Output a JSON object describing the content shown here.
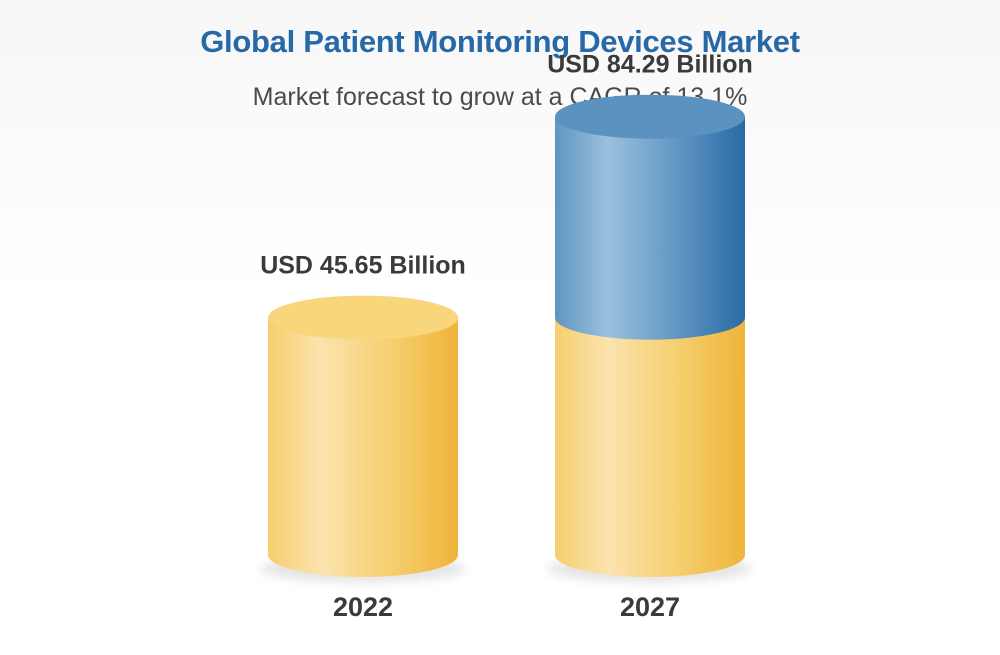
{
  "chart_data": {
    "type": "bar",
    "title": "Global Patient Monitoring Devices Market",
    "subtitle": "Market forecast to grow at a CAGR of 13.1%",
    "categories": [
      "2022",
      "2027"
    ],
    "values": [
      45.65,
      84.29
    ],
    "value_labels": [
      "USD 45.65 Billion",
      "USD 84.29 Billion"
    ],
    "base_value": 45.65,
    "unit": "USD Billion",
    "colors": {
      "title": "#2769a6",
      "base_light": "#fbe3ae",
      "base_mid": "#f5cf6e",
      "base_dark": "#efb43a",
      "top_gold": "#f8d77c",
      "growth_light": "#9cc0dd",
      "growth_mid": "#5f95c3",
      "growth_dark": "#2a6aa6",
      "growth_top": "#5b92c0"
    }
  }
}
